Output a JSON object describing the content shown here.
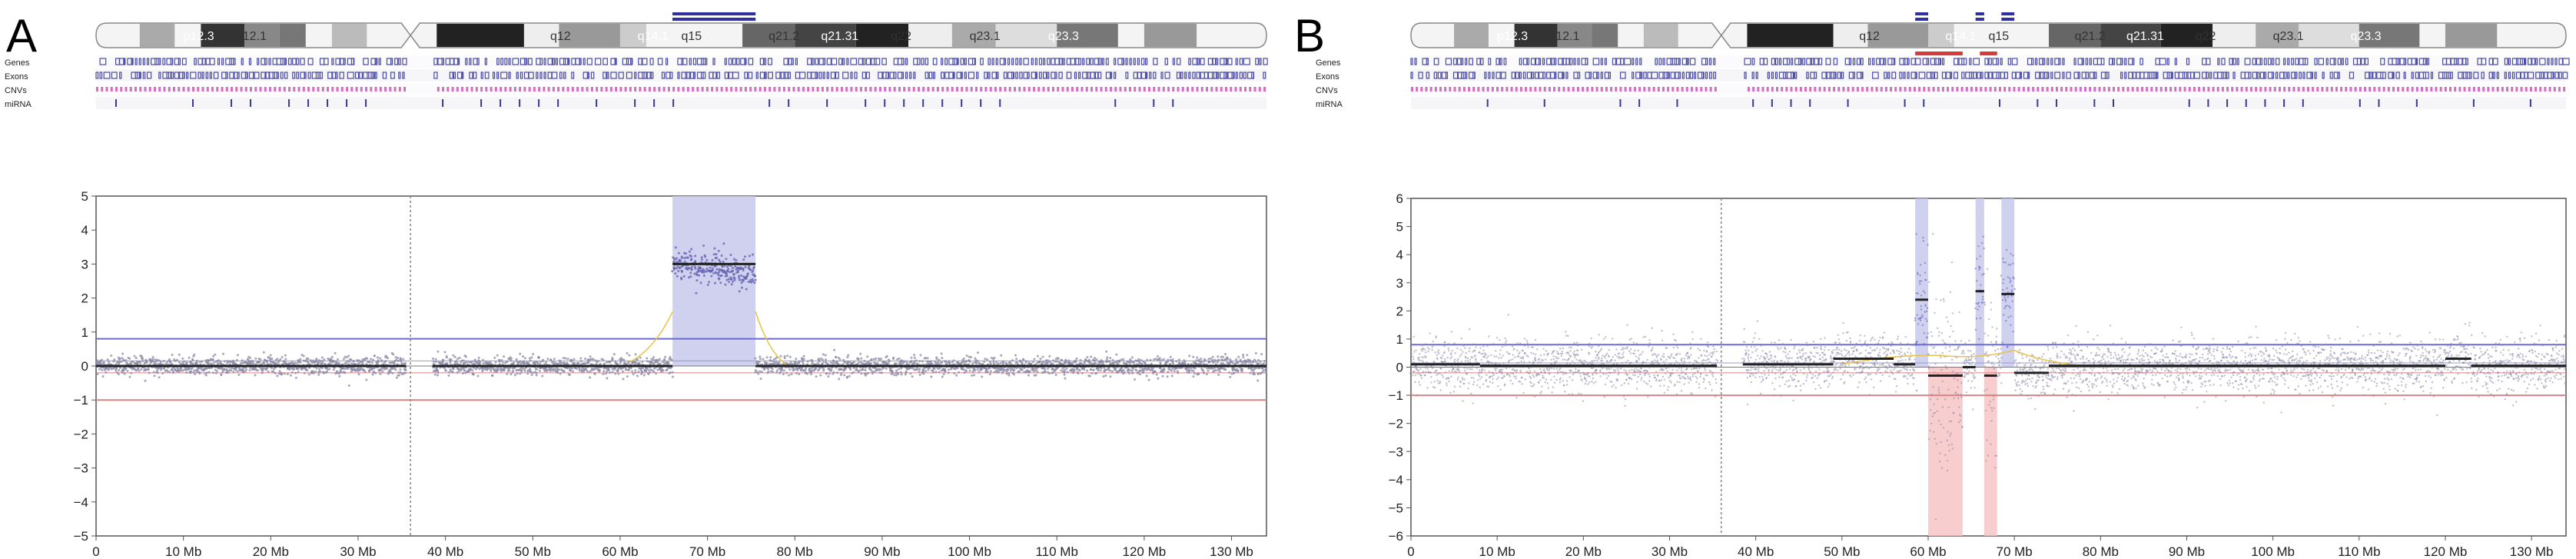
{
  "colors": {
    "amp_region": "#c8c8ec",
    "del_region": "#f7c4c4",
    "amp_line": "#6a6ad0",
    "del_line": "#d98484",
    "segment": "#222222",
    "baf_yellow": "#e8c24a",
    "gene_track": "#4a4aa8",
    "cnv_track": "#d070c0",
    "mirna_track": "#3a3a90",
    "call_amp_bar": "#3030a0",
    "call_del_bar": "#d83a3a",
    "point": "#8a8aa8"
  },
  "tracks": [
    "Genes",
    "Exons",
    "CNVs",
    "miRNA"
  ],
  "chart_data": [
    {
      "panel": "A",
      "type": "scatter",
      "title": "",
      "xlabel": "",
      "ylabel": "",
      "x_unit": "Mb",
      "xlim": [
        0,
        134
      ],
      "ylim": [
        -5,
        5
      ],
      "xticks": [
        0,
        10,
        20,
        30,
        40,
        50,
        60,
        70,
        80,
        90,
        100,
        110,
        120,
        130
      ],
      "xtick_labels": [
        "0",
        "10 Mb",
        "20 Mb",
        "30 Mb",
        "40 Mb",
        "50 Mb",
        "60 Mb",
        "70 Mb",
        "80 Mb",
        "90 Mb",
        "100 Mb",
        "110 Mb",
        "120 Mb",
        "130 Mb"
      ],
      "yticks": [
        -5,
        -4,
        -3,
        -2,
        -1,
        0,
        1,
        2,
        3,
        4,
        5
      ],
      "ytick_labels": [
        "−5",
        "−4",
        "−3",
        "−2",
        "−1",
        "0",
        "1",
        "2",
        "3",
        "4",
        "5"
      ],
      "threshold_lines": [
        0.8,
        -1.0
      ],
      "centromere_mb": 36,
      "data_gap_mb": [
        35.5,
        38.5
      ],
      "amplified_regions": [
        [
          66,
          75.5
        ]
      ],
      "deleted_regions": [],
      "segments": [
        {
          "x": [
            0,
            35.5
          ],
          "y": 0
        },
        {
          "x": [
            38.5,
            66
          ],
          "y": 0
        },
        {
          "x": [
            66,
            75.5
          ],
          "y": 3.0
        },
        {
          "x": [
            75.5,
            134
          ],
          "y": 0
        }
      ],
      "call_bars_top": [
        [
          66,
          75.5
        ],
        [
          66,
          75.5
        ]
      ],
      "call_bars_bottom": [],
      "ideogram_bands": [
        "p12.3",
        "p12.1",
        "q12",
        "q14.1",
        "q15",
        "q21.2",
        "q21.31",
        "q22",
        "q23.1",
        "q23.3"
      ]
    },
    {
      "panel": "B",
      "type": "scatter",
      "title": "",
      "xlabel": "",
      "ylabel": "",
      "x_unit": "Mb",
      "xlim": [
        0,
        134
      ],
      "ylim": [
        -6,
        6
      ],
      "xticks": [
        0,
        10,
        20,
        30,
        40,
        50,
        60,
        70,
        80,
        90,
        100,
        110,
        120,
        130
      ],
      "xtick_labels": [
        "0",
        "10 Mb",
        "20 Mb",
        "30 Mb",
        "40 Mb",
        "50 Mb",
        "60 Mb",
        "70 Mb",
        "80 Mb",
        "90 Mb",
        "100 Mb",
        "110 Mb",
        "120 Mb",
        "130 Mb"
      ],
      "yticks": [
        -6,
        -5,
        -4,
        -3,
        -2,
        -1,
        0,
        1,
        2,
        3,
        4,
        5,
        6
      ],
      "ytick_labels": [
        "−6",
        "−5",
        "−4",
        "−3",
        "−2",
        "−1",
        "0",
        "1",
        "2",
        "3",
        "4",
        "5",
        "6"
      ],
      "threshold_lines": [
        0.8,
        -1.0
      ],
      "centromere_mb": 36,
      "data_gap_mb": [
        35.5,
        38.5
      ],
      "amplified_regions": [
        [
          58.5,
          60
        ],
        [
          65.5,
          66.5
        ],
        [
          68.5,
          70
        ]
      ],
      "deleted_regions": [
        [
          60,
          64
        ],
        [
          66.5,
          68
        ]
      ],
      "segments": [
        {
          "x": [
            0,
            8
          ],
          "y": 0.1
        },
        {
          "x": [
            8,
            35.5
          ],
          "y": 0.05
        },
        {
          "x": [
            38.5,
            49
          ],
          "y": 0.1
        },
        {
          "x": [
            49,
            56
          ],
          "y": 0.3
        },
        {
          "x": [
            56,
            58.5
          ],
          "y": 0.1
        },
        {
          "x": [
            58.5,
            60
          ],
          "y": 2.4
        },
        {
          "x": [
            60,
            64
          ],
          "y": -0.3
        },
        {
          "x": [
            64,
            65.5
          ],
          "y": 0
        },
        {
          "x": [
            65.5,
            66.5
          ],
          "y": 2.7
        },
        {
          "x": [
            66.5,
            68
          ],
          "y": -0.3
        },
        {
          "x": [
            68.5,
            70
          ],
          "y": 2.6
        },
        {
          "x": [
            70,
            74
          ],
          "y": -0.2
        },
        {
          "x": [
            74,
            120
          ],
          "y": 0.05
        },
        {
          "x": [
            120,
            123
          ],
          "y": 0.3
        },
        {
          "x": [
            123,
            134
          ],
          "y": 0.05
        }
      ],
      "call_bars_top": [
        [
          58.5,
          60
        ],
        [
          65.5,
          66.5
        ],
        [
          68.5,
          70
        ]
      ],
      "call_bars_bottom": [
        [
          58.5,
          64
        ],
        [
          66,
          68
        ]
      ],
      "ideogram_bands": [
        "p12.3",
        "p12.1",
        "q12",
        "q14.1",
        "q15",
        "q21.2",
        "q21.31",
        "q22",
        "q23.1",
        "q23.3"
      ]
    }
  ]
}
